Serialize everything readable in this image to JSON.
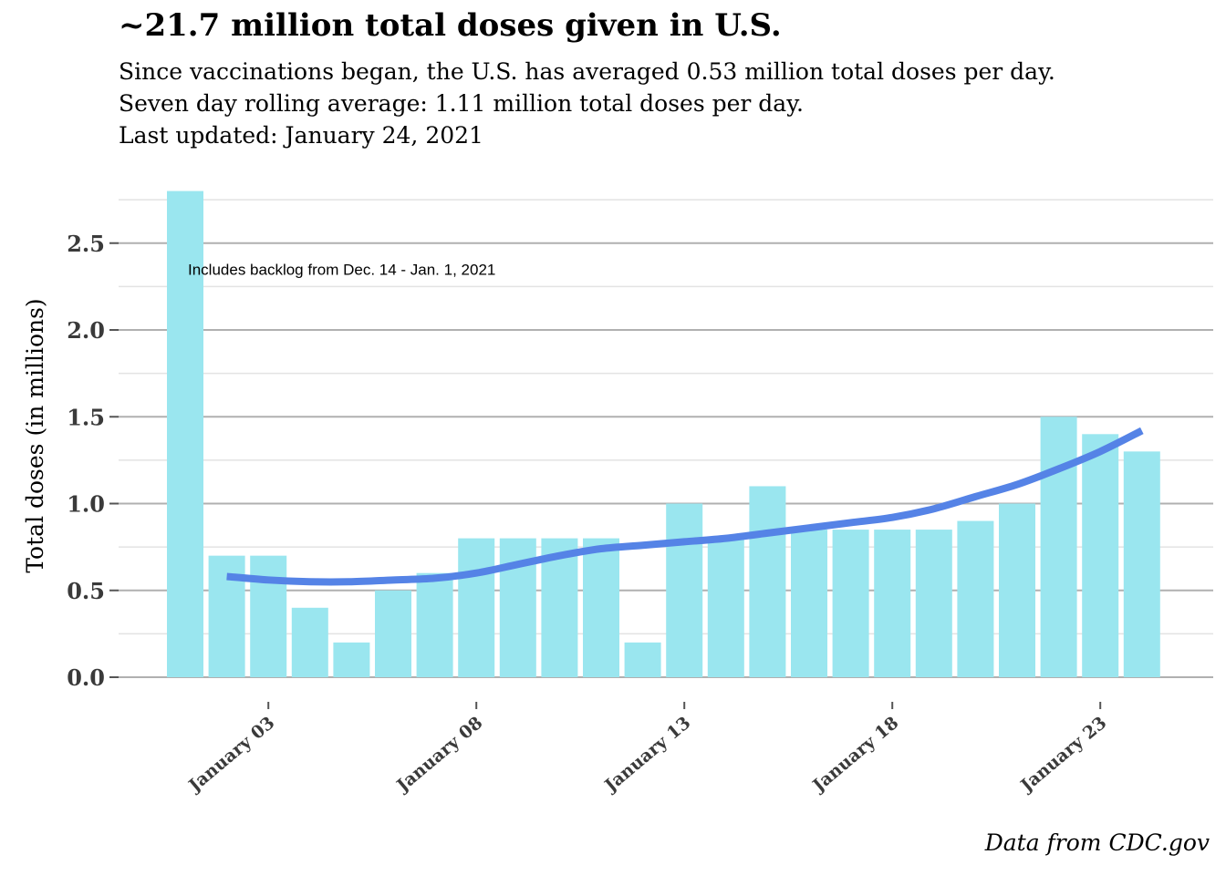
{
  "chart_data": {
    "type": "bar",
    "title": "~21.7 million total doses given in U.S.",
    "subtitle_lines": [
      "Since vaccinations began, the U.S. has averaged 0.53 million total doses per day.",
      "Seven day rolling average: 1.11 million total doses per day.",
      "Last updated: January 24, 2021"
    ],
    "caption": "Data from CDC.gov",
    "xlabel": "",
    "ylabel": "Total doses (in millions)",
    "ylim": [
      0,
      2.8
    ],
    "yticks": [
      0.0,
      0.5,
      1.0,
      1.5,
      2.0,
      2.5
    ],
    "ytick_labels": [
      "0.0",
      "0.5",
      "1.0",
      "1.5",
      "2.0",
      "2.5"
    ],
    "x": [
      "2021-01-01",
      "2021-01-02",
      "2021-01-03",
      "2021-01-04",
      "2021-01-05",
      "2021-01-06",
      "2021-01-07",
      "2021-01-08",
      "2021-01-09",
      "2021-01-10",
      "2021-01-11",
      "2021-01-12",
      "2021-01-13",
      "2021-01-14",
      "2021-01-15",
      "2021-01-16",
      "2021-01-17",
      "2021-01-18",
      "2021-01-19",
      "2021-01-20",
      "2021-01-21",
      "2021-01-22",
      "2021-01-23",
      "2021-01-24"
    ],
    "values": [
      2.8,
      0.7,
      0.7,
      0.4,
      0.2,
      0.5,
      0.6,
      0.8,
      0.8,
      0.8,
      0.8,
      0.2,
      1.0,
      0.8,
      1.1,
      0.85,
      0.85,
      0.85,
      0.85,
      0.9,
      1.0,
      1.5,
      1.4,
      1.3
    ],
    "xticks": [
      "2021-01-03",
      "2021-01-08",
      "2021-01-13",
      "2021-01-18",
      "2021-01-23"
    ],
    "xtick_labels": [
      "January 03",
      "January 08",
      "January 13",
      "January 18",
      "January 23"
    ],
    "smooth_line": {
      "x": [
        "2021-01-02",
        "2021-01-03",
        "2021-01-04",
        "2021-01-05",
        "2021-01-06",
        "2021-01-07",
        "2021-01-08",
        "2021-01-09",
        "2021-01-10",
        "2021-01-11",
        "2021-01-12",
        "2021-01-13",
        "2021-01-14",
        "2021-01-15",
        "2021-01-16",
        "2021-01-17",
        "2021-01-18",
        "2021-01-19",
        "2021-01-20",
        "2021-01-21",
        "2021-01-22",
        "2021-01-23",
        "2021-01-24"
      ],
      "values": [
        0.58,
        0.56,
        0.55,
        0.55,
        0.56,
        0.57,
        0.6,
        0.65,
        0.7,
        0.74,
        0.76,
        0.78,
        0.8,
        0.83,
        0.86,
        0.89,
        0.92,
        0.97,
        1.04,
        1.11,
        1.2,
        1.3,
        1.42
      ]
    },
    "annotation": {
      "text": "Includes backlog from Dec. 14 - Jan. 1, 2021",
      "x": "2021-01-01",
      "y": 2.35
    },
    "bar_color": "#9ae6ef",
    "line_color": "#5583e6",
    "grid": true,
    "legend": "none"
  }
}
